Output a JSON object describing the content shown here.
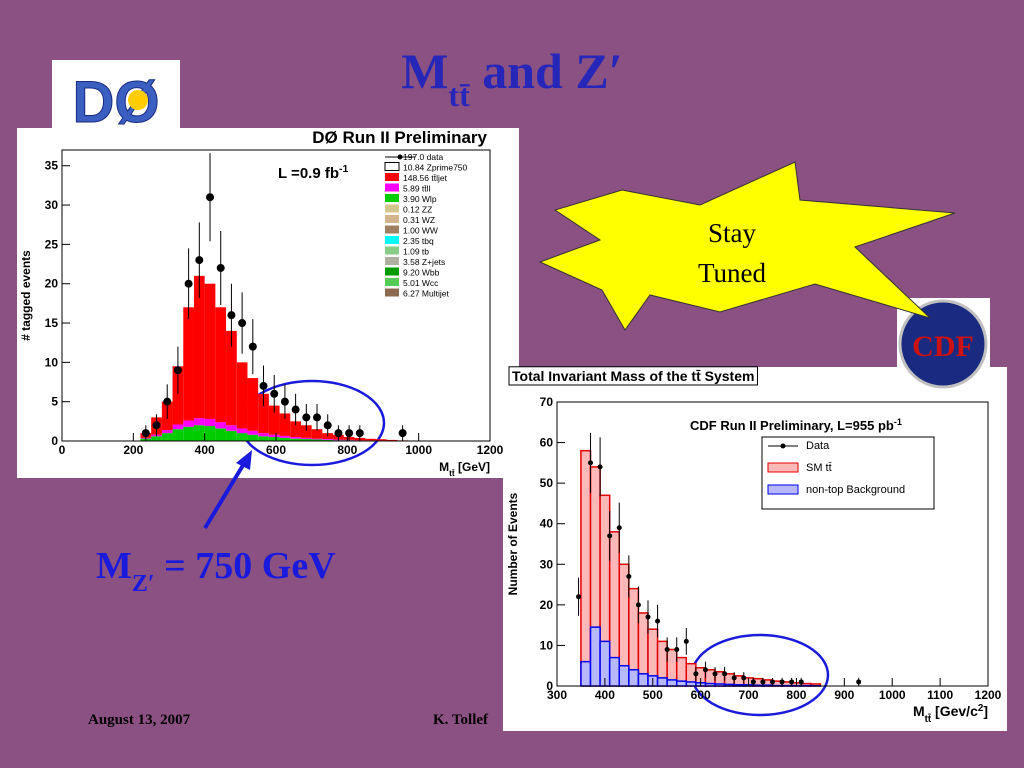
{
  "title": {
    "main": "M",
    "sub": "tt̄",
    "rest": " and Z′"
  },
  "callout": {
    "main": "M",
    "sub": "Z′",
    "rest": " = 750 GeV"
  },
  "burst": [
    "Stay",
    "Tuned"
  ],
  "logos": [
    "DØ",
    "CDF"
  ],
  "footer": [
    "August 13, 2007",
    "K. Tollef"
  ],
  "chart_data": [
    {
      "type": "histogram",
      "stacked": true,
      "title": "DØ Run II Preliminary",
      "annotation": {
        "main": "L =0.9 fb",
        "sup": "-1"
      },
      "y_label": "# tagged events",
      "x_label": {
        "main": "M",
        "sub": "tt̄",
        "rest": " [GeV]"
      },
      "xlim": [
        0,
        1200
      ],
      "xticks": [
        0,
        200,
        400,
        600,
        800,
        1000,
        1200
      ],
      "ylim": [
        0,
        37
      ],
      "yticks": [
        0,
        5,
        10,
        15,
        20,
        25,
        30,
        35
      ],
      "bins": [
        220,
        250,
        280,
        310,
        340,
        370,
        400,
        430,
        460,
        490,
        520,
        550,
        580,
        610,
        640,
        670,
        700,
        730,
        760,
        790,
        820,
        850,
        880,
        910,
        940,
        970
      ],
      "series": [
        {
          "name": "3.90 Wlp",
          "color": "#00cc00",
          "values": [
            0.3,
            0.6,
            1,
            1.5,
            1.8,
            2,
            1.9,
            1.6,
            1.3,
            1,
            0.8,
            0.6,
            0.5,
            0.4,
            0.3,
            0.25,
            0.2,
            0.15,
            0.1,
            0.1,
            0.05,
            0.05,
            0.05,
            0.02,
            0.02
          ]
        },
        {
          "name": "5.89 tt̄ll",
          "color": "#ff00ff",
          "values": [
            0.1,
            0.2,
            0.4,
            0.6,
            0.8,
            0.9,
            0.9,
            0.8,
            0.7,
            0.6,
            0.5,
            0.4,
            0.3,
            0.25,
            0.2,
            0.15,
            0.1,
            0.1,
            0.08,
            0.05,
            0.04,
            0.03,
            0.02,
            0.02,
            0.01
          ]
        },
        {
          "name": "148.56 tt̄ljet",
          "color": "#ff0000",
          "values": [
            0.6,
            2.2,
            3.6,
            7.4,
            14.4,
            18.1,
            17.2,
            14.6,
            12,
            8.4,
            6.7,
            5,
            3.7,
            2.85,
            2,
            1.6,
            1.2,
            0.75,
            0.6,
            0.35,
            0.3,
            0.2,
            0.15,
            0.1,
            0.05
          ]
        }
      ],
      "others": [
        {
          "name": "10.84 Zprime750",
          "color": "#ffffff"
        },
        {
          "name": "0.12 ZZ",
          "color": "#d4c68a"
        },
        {
          "name": "0.31 WZ",
          "color": "#d2b48c"
        },
        {
          "name": "1.00 WW",
          "color": "#a08060"
        },
        {
          "name": "2.35 tbq",
          "color": "#00ffff"
        },
        {
          "name": "1.09 tb",
          "color": "#88cc88"
        },
        {
          "name": "3.58 Z+jets",
          "color": "#b0b0a0"
        },
        {
          "name": "9.20 Wbb",
          "color": "#009900"
        },
        {
          "name": "5.01 Wcc",
          "color": "#55cc55"
        },
        {
          "name": "6.27 Multijet",
          "color": "#8b6a50"
        }
      ],
      "data": {
        "name": "197.0 data",
        "color": "#000000",
        "x": [
          235,
          265,
          295,
          325,
          355,
          385,
          415,
          445,
          475,
          505,
          535,
          565,
          595,
          625,
          655,
          685,
          715,
          745,
          775,
          805,
          835,
          955
        ],
        "values": [
          1,
          2,
          5,
          9,
          20,
          23,
          31,
          22,
          16,
          15,
          12,
          7,
          6,
          5,
          4,
          3,
          3,
          2,
          1,
          1,
          1,
          1
        ],
        "errors": [
          1,
          1.4,
          2.2,
          3,
          4.5,
          4.8,
          5.6,
          4.7,
          4,
          3.9,
          3.5,
          2.6,
          2.4,
          2.2,
          2,
          1.7,
          1.7,
          1.4,
          1,
          1,
          1,
          1
        ]
      }
    },
    {
      "type": "histogram",
      "stacked": false,
      "title": "Total Invariant Mass of the tt̄ System",
      "annotation": {
        "main": "CDF Run II Preliminary, L=955 pb",
        "sup": "-1"
      },
      "y_label": "Number of Events",
      "x_label": {
        "main": "M",
        "sub": "tt̄",
        "rest": " [Gev/c",
        "sup": "2",
        "end": "]"
      },
      "xlim": [
        300,
        1200
      ],
      "xticks": [
        300,
        400,
        500,
        600,
        700,
        800,
        900,
        1000,
        1100,
        1200
      ],
      "ylim": [
        0,
        70
      ],
      "yticks": [
        0,
        10,
        20,
        30,
        40,
        50,
        60,
        70
      ],
      "bins": [
        350,
        370,
        390,
        410,
        430,
        450,
        470,
        490,
        510,
        530,
        550,
        570,
        590,
        610,
        630,
        650,
        670,
        690,
        710,
        730,
        750,
        770,
        790,
        810,
        830,
        850
      ],
      "series": [
        {
          "name": "SM tt̄",
          "color": "#e00000",
          "fill": "#ffb8b8",
          "values": [
            58,
            54,
            47,
            38,
            30,
            24,
            18,
            14,
            11,
            9,
            7,
            5.5,
            4.5,
            4,
            3.5,
            3,
            2.5,
            2,
            1.8,
            1.5,
            1.2,
            1,
            0.8,
            0.6,
            0.5
          ]
        },
        {
          "name": "non-top Background",
          "color": "#0000ee",
          "fill": "#b8b8ff",
          "values": [
            6,
            14.5,
            11,
            7,
            5,
            4,
            3,
            2.5,
            2,
            1.5,
            1.2,
            1,
            0.8,
            0.6,
            0.5,
            0.4,
            0.3,
            0.3,
            0.2,
            0.2,
            0.1,
            0.1,
            0.1,
            0.1,
            0.05
          ]
        }
      ],
      "data": {
        "name": "Data",
        "color": "#000000",
        "x": [
          345,
          370,
          390,
          410,
          430,
          450,
          470,
          490,
          510,
          530,
          550,
          570,
          590,
          610,
          630,
          650,
          670,
          690,
          710,
          730,
          750,
          770,
          790,
          810,
          930
        ],
        "values": [
          22,
          55,
          54,
          37,
          39,
          27,
          20,
          17,
          16,
          9,
          9,
          11,
          3,
          4,
          3,
          3,
          2,
          2,
          1,
          1,
          1,
          1,
          1,
          1,
          1
        ],
        "errors": [
          4.7,
          7.4,
          7.3,
          6.1,
          6.2,
          5.2,
          4.5,
          4.1,
          4,
          3,
          3,
          3.3,
          1.7,
          2,
          1.7,
          1.7,
          1.4,
          1.4,
          1,
          1,
          1,
          1,
          1,
          1,
          1
        ]
      }
    }
  ]
}
